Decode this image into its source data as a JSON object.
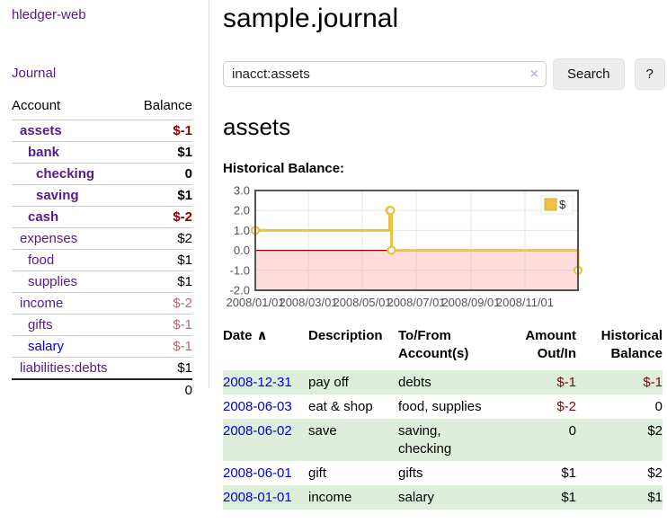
{
  "app": {
    "title": "hledger-web"
  },
  "sidebar": {
    "journal_link": "Journal",
    "accounts": {
      "col_account": "Account",
      "col_balance": "Balance",
      "rows": [
        {
          "name": "assets",
          "depth": 1,
          "balance": "$-1",
          "in_account": true,
          "negative": true,
          "unvisited": false
        },
        {
          "name": "bank",
          "depth": 2,
          "balance": "$1",
          "in_account": true,
          "negative": false,
          "unvisited": false
        },
        {
          "name": "checking",
          "depth": 3,
          "balance": "0",
          "in_account": true,
          "negative": false,
          "unvisited": false
        },
        {
          "name": "saving",
          "depth": 3,
          "balance": "$1",
          "in_account": true,
          "negative": false,
          "unvisited": false
        },
        {
          "name": "cash",
          "depth": 2,
          "balance": "$-2",
          "in_account": true,
          "negative": true,
          "unvisited": false
        },
        {
          "name": "expenses",
          "depth": 1,
          "balance": "$2",
          "in_account": false,
          "negative": false,
          "unvisited": false
        },
        {
          "name": "food",
          "depth": 2,
          "balance": "$1",
          "in_account": false,
          "negative": false,
          "unvisited": false
        },
        {
          "name": "supplies",
          "depth": 2,
          "balance": "$1",
          "in_account": false,
          "negative": false,
          "unvisited": false
        },
        {
          "name": "income",
          "depth": 1,
          "balance": "$-2",
          "in_account": false,
          "negative": true,
          "unvisited": false
        },
        {
          "name": "gifts",
          "depth": 2,
          "balance": "$-1",
          "in_account": false,
          "negative": true,
          "unvisited": false
        },
        {
          "name": "salary",
          "depth": 2,
          "balance": "$-1",
          "in_account": false,
          "negative": true,
          "unvisited": true
        },
        {
          "name": "liabilities:debts",
          "depth": 1,
          "balance": "$1",
          "in_account": false,
          "negative": false,
          "unvisited": false
        }
      ],
      "total": "0"
    }
  },
  "header": {
    "title": "sample.journal"
  },
  "search": {
    "value": "inacct:assets",
    "clear_icon": "×",
    "button_label": "Search",
    "help_label": "?"
  },
  "account_page": {
    "title": "assets",
    "section_label": "Historical Balance:"
  },
  "chart_data": {
    "type": "line",
    "step": true,
    "title": "Historical Balance",
    "x_range": [
      "2008-01-01",
      "2008-12-31"
    ],
    "ylim": [
      -2,
      3
    ],
    "y_ticks": [
      "3.0",
      "2.0",
      "1.0",
      "0.0",
      "-1.0",
      "-2.0"
    ],
    "x_ticks": [
      {
        "label": "2008/01/01",
        "date": "2008-01-01"
      },
      {
        "label": "2008/03/01",
        "date": "2008-03-01"
      },
      {
        "label": "2008/05/01",
        "date": "2008-05-01"
      },
      {
        "label": "2008/07/01",
        "date": "2008-07-01"
      },
      {
        "label": "2008/09/01",
        "date": "2008-09-01"
      },
      {
        "label": "2008/11/01",
        "date": "2008-11-01"
      }
    ],
    "series": [
      {
        "name": "$",
        "color": "#edc240",
        "points": [
          [
            "2008-01-01",
            1
          ],
          [
            "2008-06-01",
            2
          ],
          [
            "2008-06-02",
            2
          ],
          [
            "2008-06-03",
            0
          ],
          [
            "2008-12-31",
            -1
          ]
        ]
      }
    ],
    "legend": {
      "label": "$",
      "position": "top-right"
    },
    "grid": true,
    "grid_color": "#e6e6e6",
    "negative_fill": "#fcdcdc",
    "zero_line_color": "#990000",
    "border_color": "#545454",
    "tick_label_color": "#545454"
  },
  "register": {
    "columns": [
      {
        "label": "Date",
        "sort_icon": "∧",
        "align": "left"
      },
      {
        "label": "Description",
        "align": "left"
      },
      {
        "label": "To/From Account(s)",
        "align": "left"
      },
      {
        "label": "Amount Out/In",
        "align": "right"
      },
      {
        "label": "Historical Balance",
        "align": "right"
      }
    ],
    "rows": [
      {
        "date": "2008-12-31",
        "description": "pay off",
        "accounts": "debts",
        "amount": "$-1",
        "balance": "$-1",
        "amount_negative": true,
        "balance_negative": true,
        "shaded": true
      },
      {
        "date": "2008-06-03",
        "description": "eat & shop",
        "accounts": "food, supplies",
        "amount": "$-2",
        "balance": "0",
        "amount_negative": true,
        "balance_negative": false,
        "shaded": false
      },
      {
        "date": "2008-06-02",
        "description": "save",
        "accounts": "saving, checking",
        "amount": "0",
        "balance": "$2",
        "amount_negative": false,
        "balance_negative": false,
        "shaded": true
      },
      {
        "date": "2008-06-01",
        "description": "gift",
        "accounts": "gifts",
        "amount": "$1",
        "balance": "$2",
        "amount_negative": false,
        "balance_negative": false,
        "shaded": false
      },
      {
        "date": "2008-01-01",
        "description": "income",
        "accounts": "salary",
        "amount": "$1",
        "balance": "$1",
        "amount_negative": false,
        "balance_negative": false,
        "shaded": true
      }
    ]
  },
  "colors": {
    "accent_purple": "#551a8b",
    "link_blue": "#0000dd",
    "negative_strong": "#8b0000",
    "negative_muted": "#b36b6b",
    "row_shade_green": "#ddeedd",
    "chart_line": "#edc240"
  }
}
